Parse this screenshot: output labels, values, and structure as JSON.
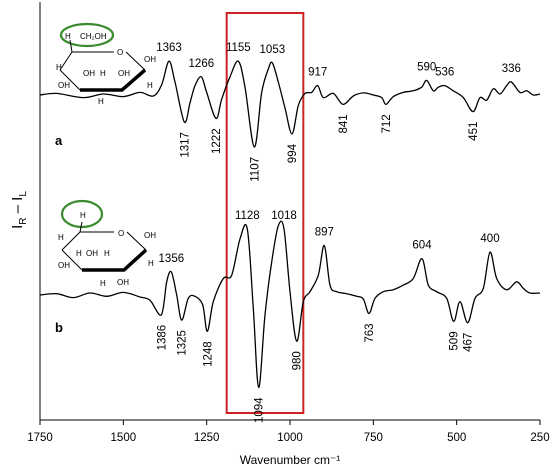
{
  "chart_data": {
    "type": "line",
    "xlabel": "Wavenumber cm⁻¹",
    "ylabel": "I_R – I_L",
    "ylabel_main_1": "I",
    "ylabel_sub_1": "R",
    "ylabel_mid": " – I",
    "ylabel_sub_2": "L",
    "xlim": [
      1750,
      250
    ],
    "x_reversed": true,
    "grid": false,
    "xticks": [
      1750,
      1500,
      1250,
      1000,
      750,
      500,
      250
    ],
    "highlight_box": {
      "x_range": [
        1190,
        960
      ],
      "color": "#cc2222"
    },
    "series": [
      {
        "name": "a",
        "points": [
          [
            1750,
            0
          ],
          [
            1700,
            0.3
          ],
          [
            1620,
            -0.5
          ],
          [
            1560,
            0.2
          ],
          [
            1500,
            -0.3
          ],
          [
            1450,
            0.5
          ],
          [
            1410,
            -0.2
          ],
          [
            1385,
            2.0
          ],
          [
            1363,
            6.5
          ],
          [
            1345,
            2.5
          ],
          [
            1317,
            -5.2
          ],
          [
            1300,
            -1.5
          ],
          [
            1285,
            1.8
          ],
          [
            1266,
            3.5
          ],
          [
            1250,
            0.5
          ],
          [
            1222,
            -4.5
          ],
          [
            1205,
            -0.8
          ],
          [
            1180,
            3.5
          ],
          [
            1155,
            6.5
          ],
          [
            1135,
            1.5
          ],
          [
            1107,
            -10.0
          ],
          [
            1085,
            0.5
          ],
          [
            1065,
            5.0
          ],
          [
            1053,
            6.2
          ],
          [
            1035,
            2.5
          ],
          [
            1015,
            -2.5
          ],
          [
            994,
            -7.5
          ],
          [
            975,
            -2.0
          ],
          [
            955,
            0.3
          ],
          [
            935,
            0.5
          ],
          [
            917,
            1.8
          ],
          [
            900,
            -0.5
          ],
          [
            870,
            0.3
          ],
          [
            841,
            -1.8
          ],
          [
            810,
            -0.2
          ],
          [
            780,
            0.4
          ],
          [
            750,
            0.0
          ],
          [
            725,
            -0.5
          ],
          [
            712,
            -1.8
          ],
          [
            690,
            -0.3
          ],
          [
            660,
            0.5
          ],
          [
            630,
            0.8
          ],
          [
            605,
            1.5
          ],
          [
            590,
            2.8
          ],
          [
            570,
            0.8
          ],
          [
            555,
            1.5
          ],
          [
            536,
            1.8
          ],
          [
            510,
            0.8
          ],
          [
            480,
            -0.5
          ],
          [
            451,
            -3.2
          ],
          [
            430,
            -0.5
          ],
          [
            410,
            -1.0
          ],
          [
            390,
            1.2
          ],
          [
            370,
            0.2
          ],
          [
            350,
            1.8
          ],
          [
            336,
            2.5
          ],
          [
            310,
            0.5
          ],
          [
            290,
            0.8
          ],
          [
            270,
            0.0
          ],
          [
            250,
            0.2
          ]
        ],
        "peak_labels": [
          {
            "x": 1363,
            "text": "1363",
            "pos": "above"
          },
          {
            "x": 1317,
            "text": "1317",
            "pos": "below"
          },
          {
            "x": 1266,
            "text": "1266",
            "pos": "above"
          },
          {
            "x": 1222,
            "text": "1222",
            "pos": "below"
          },
          {
            "x": 1155,
            "text": "1155",
            "pos": "above"
          },
          {
            "x": 1107,
            "text": "1107",
            "pos": "below"
          },
          {
            "x": 1053,
            "text": "1053",
            "pos": "above"
          },
          {
            "x": 994,
            "text": "994",
            "pos": "below"
          },
          {
            "x": 917,
            "text": "917",
            "pos": "above"
          },
          {
            "x": 841,
            "text": "841",
            "pos": "below"
          },
          {
            "x": 712,
            "text": "712",
            "pos": "below"
          },
          {
            "x": 590,
            "text": "590",
            "pos": "above"
          },
          {
            "x": 536,
            "text": "536",
            "pos": "above"
          },
          {
            "x": 451,
            "text": "451",
            "pos": "below"
          },
          {
            "x": 336,
            "text": "336",
            "pos": "above"
          }
        ]
      },
      {
        "name": "b",
        "points": [
          [
            1750,
            0
          ],
          [
            1700,
            0.2
          ],
          [
            1650,
            -0.4
          ],
          [
            1600,
            0.3
          ],
          [
            1550,
            -0.2
          ],
          [
            1500,
            0.4
          ],
          [
            1450,
            -0.3
          ],
          [
            1420,
            -0.8
          ],
          [
            1386,
            -3.0
          ],
          [
            1370,
            2.0
          ],
          [
            1356,
            3.5
          ],
          [
            1340,
            0.0
          ],
          [
            1325,
            -3.8
          ],
          [
            1305,
            -0.5
          ],
          [
            1285,
            -0.2
          ],
          [
            1262,
            -1.5
          ],
          [
            1248,
            -5.5
          ],
          [
            1230,
            -1.0
          ],
          [
            1200,
            2.5
          ],
          [
            1175,
            3.0
          ],
          [
            1150,
            8.5
          ],
          [
            1128,
            10.0
          ],
          [
            1110,
            -2.0
          ],
          [
            1094,
            -14.0
          ],
          [
            1075,
            -3.0
          ],
          [
            1055,
            5.0
          ],
          [
            1035,
            10.5
          ],
          [
            1018,
            10.0
          ],
          [
            1000,
            0.5
          ],
          [
            980,
            -7.0
          ],
          [
            960,
            -1.0
          ],
          [
            940,
            0.5
          ],
          [
            915,
            3.0
          ],
          [
            897,
            7.5
          ],
          [
            880,
            1.5
          ],
          [
            860,
            0.5
          ],
          [
            830,
            0.2
          ],
          [
            800,
            -0.2
          ],
          [
            780,
            -0.6
          ],
          [
            763,
            -2.8
          ],
          [
            745,
            -0.5
          ],
          [
            720,
            0.5
          ],
          [
            690,
            0.8
          ],
          [
            660,
            1.5
          ],
          [
            630,
            2.5
          ],
          [
            604,
            5.5
          ],
          [
            585,
            1.5
          ],
          [
            560,
            0.5
          ],
          [
            530,
            -0.5
          ],
          [
            509,
            -4.0
          ],
          [
            490,
            -1.0
          ],
          [
            467,
            -4.2
          ],
          [
            445,
            -0.5
          ],
          [
            420,
            1.0
          ],
          [
            400,
            6.5
          ],
          [
            380,
            2.5
          ],
          [
            350,
            0.8
          ],
          [
            320,
            2.0
          ],
          [
            300,
            1.0
          ],
          [
            280,
            0.3
          ],
          [
            250,
            0.3
          ]
        ],
        "peak_labels": [
          {
            "x": 1386,
            "text": "1386",
            "pos": "below"
          },
          {
            "x": 1356,
            "text": "1356",
            "pos": "above"
          },
          {
            "x": 1325,
            "text": "1325",
            "pos": "below"
          },
          {
            "x": 1248,
            "text": "1248",
            "pos": "below"
          },
          {
            "x": 1128,
            "text": "1128",
            "pos": "above"
          },
          {
            "x": 1094,
            "text": "1094",
            "pos": "below"
          },
          {
            "x": 1018,
            "text": "1018",
            "pos": "above"
          },
          {
            "x": 980,
            "text": "980",
            "pos": "below"
          },
          {
            "x": 897,
            "text": "897",
            "pos": "above"
          },
          {
            "x": 763,
            "text": "763",
            "pos": "below"
          },
          {
            "x": 604,
            "text": "604",
            "pos": "above"
          },
          {
            "x": 509,
            "text": "509",
            "pos": "below"
          },
          {
            "x": 467,
            "text": "467",
            "pos": "below"
          },
          {
            "x": 400,
            "text": "400",
            "pos": "above"
          }
        ]
      }
    ],
    "molecule_a": {
      "group": "CH₂OH",
      "labels": [
        "O",
        "H",
        "OH",
        "H",
        "OH",
        "H",
        "OH",
        "H",
        "OH",
        "H"
      ],
      "highlight_color": "#3a8a2e"
    },
    "molecule_b": {
      "group": "H",
      "labels": [
        "O",
        "H",
        "OH",
        "H",
        "OH",
        "H",
        "OH",
        "H",
        "OH",
        "H"
      ],
      "highlight_color": "#3a8a2e"
    }
  }
}
